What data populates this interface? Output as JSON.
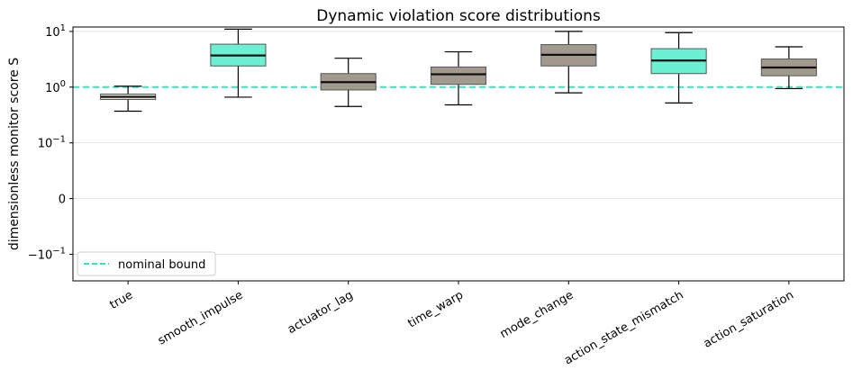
{
  "chart_data": {
    "type": "box",
    "title": "Dynamic violation score distributions",
    "xlabel": "",
    "ylabel": "dimensionless monitor score S",
    "yscale": "symlog",
    "ylim": [
      -0.3,
      12
    ],
    "ytick_labels": [
      "10^1",
      "10^0",
      "10^-1",
      "0",
      "-10^-1"
    ],
    "grid": "y",
    "legend": {
      "position": "lower-left",
      "entries": [
        "nominal bound"
      ]
    },
    "reference_line": {
      "label": "nominal bound",
      "y": 1.0,
      "style": "dashed",
      "color": "#2ee6c2"
    },
    "colors": {
      "highlight": "#6df0d2",
      "normal": "#a39a8f",
      "baseline": "#dedbd5"
    },
    "categories": [
      "true",
      "smooth_impulse",
      "actuator_lag",
      "time_warp",
      "mode_change",
      "action_state_mismatch",
      "action_saturation"
    ],
    "boxes": [
      {
        "category": "true",
        "whislo": 0.37,
        "q1": 0.6,
        "med": 0.67,
        "q3": 0.75,
        "whishi": 1.04,
        "fill": "baseline"
      },
      {
        "category": "smooth_impulse",
        "whislo": 0.66,
        "q1": 2.4,
        "med": 3.7,
        "q3": 5.9,
        "whishi": 11.0,
        "fill": "highlight"
      },
      {
        "category": "actuator_lag",
        "whislo": 0.45,
        "q1": 0.89,
        "med": 1.23,
        "q3": 1.75,
        "whishi": 3.3,
        "fill": "normal"
      },
      {
        "category": "time_warp",
        "whislo": 0.48,
        "q1": 1.12,
        "med": 1.7,
        "q3": 2.3,
        "whishi": 4.3,
        "fill": "normal"
      },
      {
        "category": "mode_change",
        "whislo": 0.79,
        "q1": 2.4,
        "med": 3.8,
        "q3": 5.8,
        "whishi": 10.0,
        "fill": "normal"
      },
      {
        "category": "action_state_mismatch",
        "whislo": 0.52,
        "q1": 1.75,
        "med": 3.0,
        "q3": 4.9,
        "whishi": 9.5,
        "fill": "highlight"
      },
      {
        "category": "action_saturation",
        "whislo": 0.94,
        "q1": 1.6,
        "med": 2.25,
        "q3": 3.2,
        "whishi": 5.3,
        "fill": "normal"
      }
    ]
  }
}
